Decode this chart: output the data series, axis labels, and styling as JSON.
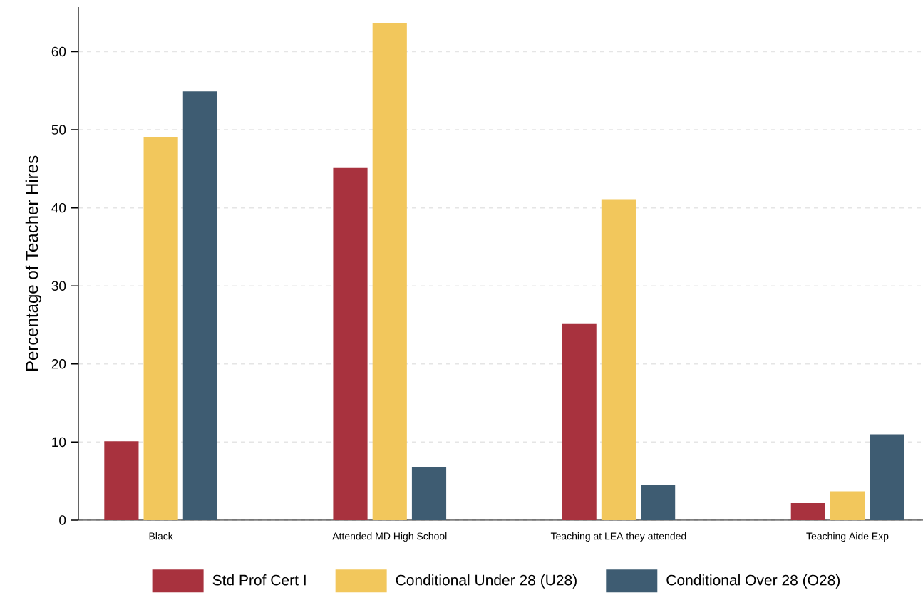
{
  "chart_data": {
    "type": "bar",
    "ylabel": "Percentage of Teacher Hires",
    "categories": [
      "Black",
      "Attended MD High School",
      "Teaching at LEA they attended",
      "Teaching Aide Exp"
    ],
    "series": [
      {
        "name": "Std Prof Cert I",
        "color": "#a8323e",
        "values": [
          10.1,
          45.1,
          25.2,
          2.2
        ]
      },
      {
        "name": "Conditional Under 28 (U28)",
        "color": "#f2c75c",
        "values": [
          49.1,
          63.7,
          41.1,
          3.7
        ]
      },
      {
        "name": "Conditional Over 28 (O28)",
        "color": "#3e5c72",
        "values": [
          54.9,
          6.8,
          4.5,
          11.0
        ]
      }
    ],
    "ylim": [
      0,
      65.7
    ],
    "yticks": [
      0,
      10,
      20,
      30,
      40,
      50,
      60
    ],
    "grid": "y",
    "legend": "bottom"
  }
}
